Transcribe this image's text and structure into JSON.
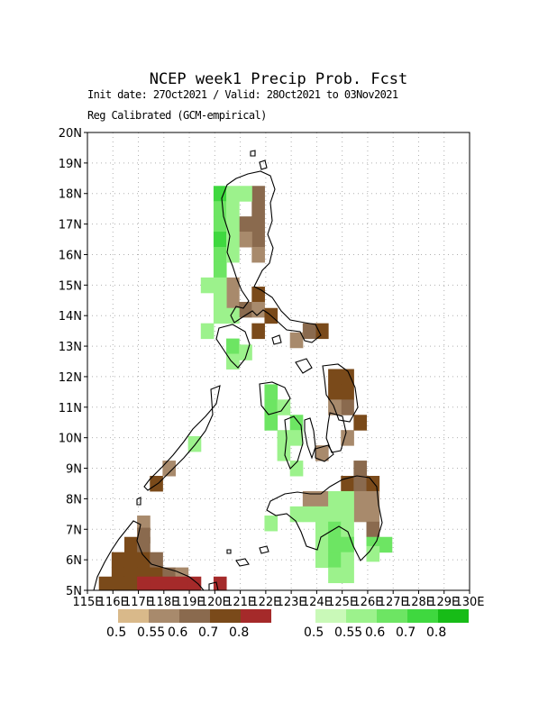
{
  "title": "NCEP week1 Precip Prob. Fcst",
  "subtitle_dates": "Init date: 27Oct2021 / Valid: 28Oct2021 to 03Nov2021",
  "subtitle_method": "Reg Calibrated (GCM-empirical)",
  "map": {
    "lon_range": [
      115,
      130
    ],
    "lat_range": [
      5,
      20
    ],
    "x_tick_labels": [
      "115E",
      "116E",
      "117E",
      "118E",
      "119E",
      "120E",
      "121E",
      "122E",
      "123E",
      "124E",
      "125E",
      "126E",
      "127E",
      "128E",
      "129E",
      "130E"
    ],
    "y_tick_labels": [
      "5N",
      "6N",
      "7N",
      "8N",
      "9N",
      "10N",
      "11N",
      "12N",
      "13N",
      "14N",
      "15N",
      "16N",
      "17N",
      "18N",
      "19N",
      "20N"
    ],
    "grid": "dotted",
    "below_normal_cells": [
      [
        121.7,
        18.0,
        2
      ],
      [
        121.7,
        17.5,
        2
      ],
      [
        121.2,
        17.0,
        2
      ],
      [
        121.7,
        17.0,
        2
      ],
      [
        121.7,
        16.5,
        2
      ],
      [
        121.2,
        16.5,
        1
      ],
      [
        121.7,
        16.0,
        1
      ],
      [
        120.7,
        15.0,
        1
      ],
      [
        120.7,
        14.5,
        1
      ],
      [
        121.7,
        14.7,
        3
      ],
      [
        121.2,
        14.2,
        2
      ],
      [
        121.7,
        14.2,
        1
      ],
      [
        122.2,
        14.0,
        3
      ],
      [
        121.7,
        13.5,
        3
      ],
      [
        124.2,
        13.5,
        3
      ],
      [
        123.7,
        13.5,
        2
      ],
      [
        123.2,
        13.2,
        1
      ],
      [
        124.7,
        12.0,
        3
      ],
      [
        125.2,
        12.0,
        3
      ],
      [
        124.7,
        11.5,
        3
      ],
      [
        125.2,
        11.5,
        3
      ],
      [
        125.2,
        11.0,
        2
      ],
      [
        124.7,
        11.0,
        1
      ],
      [
        125.7,
        10.5,
        3
      ],
      [
        125.2,
        10.0,
        1
      ],
      [
        124.2,
        9.5,
        1
      ],
      [
        125.7,
        9.0,
        2
      ],
      [
        125.2,
        8.5,
        3
      ],
      [
        125.7,
        8.5,
        2
      ],
      [
        126.2,
        8.5,
        3
      ],
      [
        124.2,
        8.0,
        1
      ],
      [
        123.7,
        8.0,
        1
      ],
      [
        125.7,
        8.0,
        1
      ],
      [
        126.2,
        8.0,
        1
      ],
      [
        125.7,
        7.5,
        1
      ],
      [
        126.2,
        7.5,
        1
      ],
      [
        126.2,
        7.0,
        2
      ],
      [
        118.2,
        9.0,
        1
      ],
      [
        117.7,
        8.5,
        3
      ],
      [
        117.2,
        7.2,
        1
      ],
      [
        117.2,
        6.8,
        2
      ],
      [
        116.7,
        6.5,
        3
      ],
      [
        117.2,
        6.5,
        2
      ],
      [
        116.2,
        6.0,
        3
      ],
      [
        116.7,
        6.0,
        3
      ],
      [
        117.2,
        6.0,
        3
      ],
      [
        117.7,
        6.0,
        2
      ],
      [
        116.2,
        5.5,
        3
      ],
      [
        116.7,
        5.5,
        3
      ],
      [
        117.2,
        5.5,
        3
      ],
      [
        117.7,
        5.5,
        3
      ],
      [
        118.2,
        5.5,
        2
      ],
      [
        118.7,
        5.5,
        1
      ],
      [
        115.7,
        5.2,
        3
      ],
      [
        116.2,
        5.2,
        3
      ],
      [
        116.7,
        5.2,
        3
      ],
      [
        117.2,
        5.2,
        4
      ],
      [
        117.7,
        5.2,
        4
      ],
      [
        118.2,
        5.2,
        4
      ],
      [
        118.7,
        5.2,
        4
      ],
      [
        119.2,
        5.2,
        4
      ],
      [
        120.2,
        5.2,
        4
      ]
    ],
    "above_normal_cells": [
      [
        120.2,
        18.0,
        3
      ],
      [
        120.7,
        18.0,
        1
      ],
      [
        121.2,
        18.0,
        1
      ],
      [
        120.2,
        17.5,
        2
      ],
      [
        120.7,
        17.5,
        1
      ],
      [
        120.2,
        17.0,
        2
      ],
      [
        120.7,
        17.0,
        1
      ],
      [
        120.2,
        16.5,
        3
      ],
      [
        120.7,
        16.5,
        1
      ],
      [
        120.2,
        16.0,
        2
      ],
      [
        120.7,
        16.0,
        1
      ],
      [
        120.2,
        15.5,
        2
      ],
      [
        119.7,
        15.0,
        1
      ],
      [
        120.2,
        15.0,
        1
      ],
      [
        120.2,
        14.5,
        1
      ],
      [
        120.2,
        14.0,
        1
      ],
      [
        120.7,
        14.0,
        1
      ],
      [
        119.7,
        13.5,
        1
      ],
      [
        120.7,
        13.0,
        2
      ],
      [
        120.7,
        12.5,
        1
      ],
      [
        121.2,
        12.8,
        1
      ],
      [
        122.2,
        11.5,
        2
      ],
      [
        122.2,
        11.0,
        2
      ],
      [
        122.7,
        11.0,
        1
      ],
      [
        122.2,
        10.5,
        2
      ],
      [
        123.2,
        10.5,
        2
      ],
      [
        122.7,
        10.0,
        1
      ],
      [
        123.2,
        10.0,
        1
      ],
      [
        122.7,
        9.5,
        1
      ],
      [
        123.2,
        9.0,
        1
      ],
      [
        119.2,
        9.8,
        1
      ],
      [
        124.7,
        8.0,
        1
      ],
      [
        125.2,
        8.0,
        1
      ],
      [
        123.2,
        7.5,
        1
      ],
      [
        123.7,
        7.5,
        1
      ],
      [
        124.2,
        7.5,
        1
      ],
      [
        124.7,
        7.5,
        1
      ],
      [
        125.2,
        7.5,
        1
      ],
      [
        122.2,
        7.2,
        1
      ],
      [
        124.2,
        7.0,
        1
      ],
      [
        124.7,
        7.0,
        2
      ],
      [
        125.2,
        7.0,
        1
      ],
      [
        126.2,
        6.5,
        2
      ],
      [
        126.7,
        6.5,
        2
      ],
      [
        124.2,
        6.5,
        1
      ],
      [
        124.7,
        6.5,
        2
      ],
      [
        125.2,
        6.5,
        2
      ],
      [
        126.2,
        6.2,
        1
      ],
      [
        124.2,
        6.0,
        1
      ],
      [
        124.7,
        6.0,
        2
      ],
      [
        125.2,
        6.0,
        1
      ],
      [
        124.7,
        5.5,
        1
      ],
      [
        125.2,
        5.5,
        1
      ]
    ]
  },
  "legend_below": {
    "colors": [
      "#d9b98a",
      "#a88a6c",
      "#8a6a4e",
      "#7a4a1a",
      "#a52a2a"
    ],
    "labels": [
      "0.5",
      "0.55",
      "0.6",
      "0.7",
      "0.8"
    ]
  },
  "legend_above": {
    "colors": [
      "#c9f9b8",
      "#9cf28c",
      "#6de563",
      "#3fd83f",
      "#17bc17"
    ],
    "labels": [
      "0.5",
      "0.55",
      "0.6",
      "0.7",
      "0.8"
    ]
  }
}
